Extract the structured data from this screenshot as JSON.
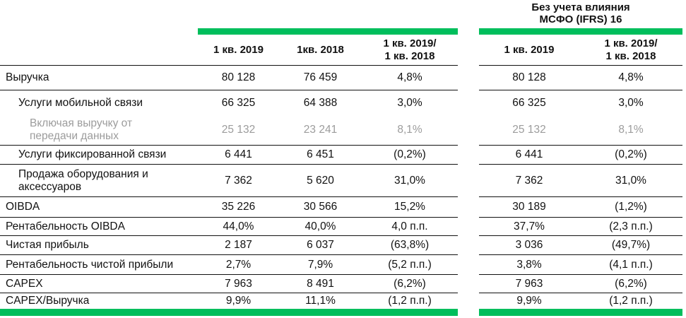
{
  "right_group_title": "Без учета влияния\nМСФО (IFRS) 16",
  "left_table": {
    "columns": [
      "1 кв. 2019",
      "1кв. 2018",
      "1 кв. 2019/\n1 кв. 2018"
    ]
  },
  "right_table": {
    "columns": [
      "1 кв. 2019",
      "1 кв. 2019/\n1 кв. 2018"
    ]
  },
  "rows": [
    {
      "label": "Выручка",
      "indent": 0,
      "muted": false,
      "separator_above": true,
      "left": [
        "80 128",
        "76 459",
        "4,8%"
      ],
      "right": [
        "80 128",
        "4,8%"
      ]
    },
    {
      "label": "Услуги мобильной связи",
      "indent": 1,
      "muted": false,
      "separator_above": true,
      "left": [
        "66 325",
        "64 388",
        "3,0%"
      ],
      "right": [
        "66 325",
        "3,0%"
      ]
    },
    {
      "label": "Включая выручку от\nпередачи данных",
      "indent": 2,
      "muted": true,
      "separator_above": false,
      "left": [
        "25 132",
        "23 241",
        "8,1%"
      ],
      "right": [
        "25 132",
        "8,1%"
      ]
    },
    {
      "label": "Услуги фиксированной связи",
      "indent": 1,
      "muted": false,
      "separator_above": true,
      "left": [
        "6 441",
        "6 451",
        "(0,2%)"
      ],
      "right": [
        "6 441",
        "(0,2%)"
      ]
    },
    {
      "label": "Продажа оборудования и\nаксессуаров",
      "indent": 1,
      "muted": false,
      "separator_above": true,
      "left": [
        "7 362",
        "5 620",
        "31,0%"
      ],
      "right": [
        "7 362",
        "31,0%"
      ]
    },
    {
      "label": "OIBDA",
      "indent": 0,
      "muted": false,
      "separator_above": true,
      "left": [
        "35 226",
        "30 566",
        "15,2%"
      ],
      "right": [
        "30 189",
        "(1,2%)"
      ]
    },
    {
      "label": "Рентабельность OIBDA",
      "indent": 0,
      "muted": false,
      "separator_above": true,
      "left": [
        "44,0%",
        "40,0%",
        "4,0 п.п."
      ],
      "right": [
        "37,7%",
        "(2,3 п.п.)"
      ]
    },
    {
      "label": "Чистая прибыль",
      "indent": 0,
      "muted": false,
      "separator_above": true,
      "left": [
        "2 187",
        "6 037",
        "(63,8%)"
      ],
      "right": [
        "3 036",
        "(49,7%)"
      ]
    },
    {
      "label": "Рентабельность чистой прибыли",
      "indent": 0,
      "muted": false,
      "separator_above": true,
      "left": [
        "2,7%",
        "7,9%",
        "(5,2 п.п.)"
      ],
      "right": [
        "3,8%",
        "(4,1 п.п.)"
      ]
    },
    {
      "label": "CAPEX",
      "indent": 0,
      "muted": false,
      "separator_above": true,
      "left": [
        "7 963",
        "8 491",
        "(6,2%)"
      ],
      "right": [
        "7 963",
        "(6,2%)"
      ]
    },
    {
      "label": "CAPEX/Выручка",
      "indent": 0,
      "muted": false,
      "separator_above": true,
      "left": [
        "9,9%",
        "11,1%",
        "(1,2 п.п.)"
      ],
      "right": [
        "9,9%",
        "(1,2 п.п.)"
      ]
    }
  ],
  "colors": {
    "accent_green": "#00BE5C",
    "text": "#111111",
    "muted_text": "#9C9C9C",
    "line": "#111111"
  }
}
